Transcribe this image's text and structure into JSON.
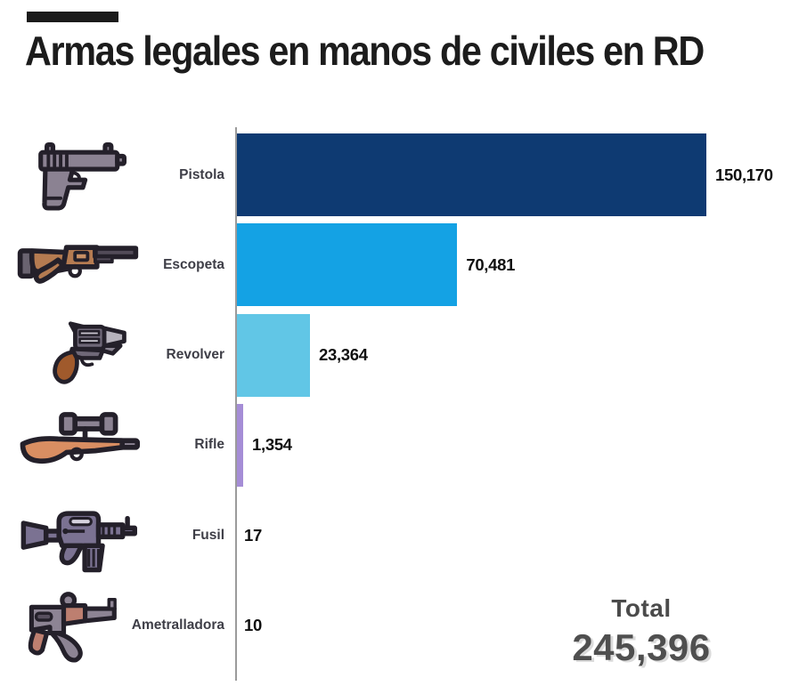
{
  "header": {
    "title": "Armas legales en manos de civiles en RD",
    "accent_color": "#1b1b1b"
  },
  "chart_data": {
    "type": "bar",
    "orientation": "horizontal",
    "title": "Armas legales en manos de civiles en RD",
    "categories": [
      "Pistola",
      "Escopeta",
      "Revolver",
      "Rifle",
      "Fusil",
      "Ametralladora"
    ],
    "values": [
      150170,
      70481,
      23364,
      1354,
      17,
      10
    ],
    "value_labels": [
      "150,170",
      "70,481",
      "23,364",
      "1,354",
      "17",
      "10"
    ],
    "bar_colors": [
      "#0e3a72",
      "#14a2e4",
      "#61c6e6",
      "#a58dd6",
      null,
      null
    ],
    "icons": [
      "pistol-icon",
      "shotgun-icon",
      "revolver-icon",
      "sniper-rifle-icon",
      "assault-rifle-icon",
      "machine-gun-icon"
    ],
    "xlim": [
      0,
      150170
    ],
    "grid": false,
    "axis_line_color": "#9b9b9b",
    "legend": "none"
  },
  "total": {
    "label": "Total",
    "value": "245,396"
  }
}
